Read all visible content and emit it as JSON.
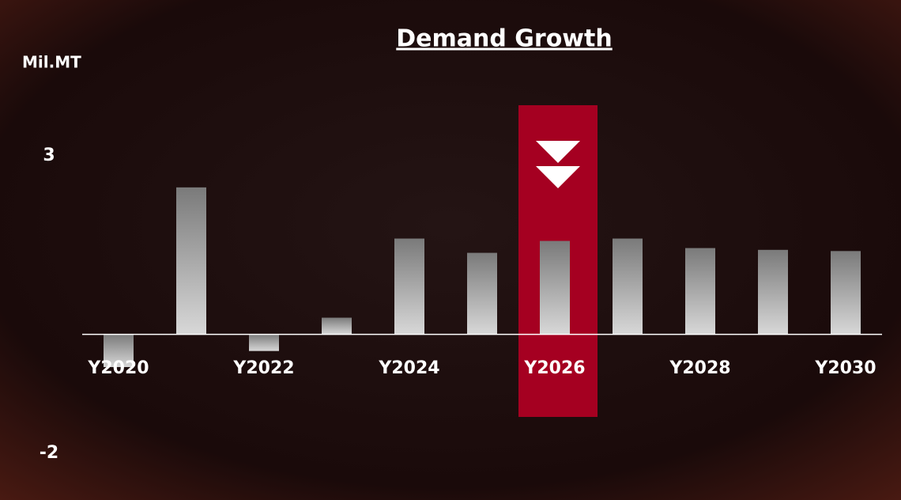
{
  "chart_data": {
    "type": "bar",
    "title": "Demand Growth",
    "y_label": "Mil.MT",
    "categories": [
      "Y2020",
      null,
      "Y2022",
      null,
      "Y2024",
      null,
      "Y2026",
      null,
      "Y2028",
      null,
      "Y2030"
    ],
    "values": [
      -0.55,
      2.47,
      -0.28,
      0.28,
      1.61,
      1.37,
      1.57,
      1.61,
      1.45,
      1.42,
      1.4
    ],
    "ylim": [
      -2,
      3
    ],
    "yticks": [
      -2,
      3
    ],
    "grid": false
  }
}
